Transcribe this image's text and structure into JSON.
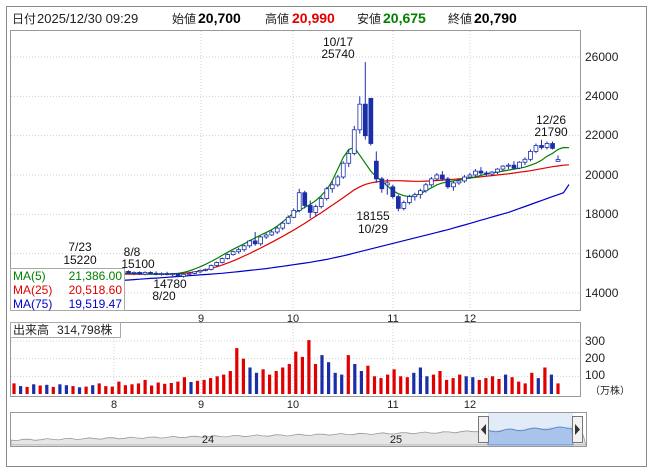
{
  "header": {
    "date_label": "日付",
    "datetime": "2025/12/30 09:29",
    "open_label": "始値",
    "open": "20,700",
    "high_label": "高値",
    "high": "20,990",
    "low_label": "安値",
    "low": "20,675",
    "close_label": "終値",
    "close": "20,790",
    "colors": {
      "high": "#e00000",
      "low": "#008000",
      "normal": "#000000"
    }
  },
  "price_chart": {
    "y_ticks": [
      "26000",
      "24000",
      "22000",
      "20000",
      "18000",
      "16000",
      "14000"
    ],
    "ma_legend": [
      {
        "label": "MA(5)",
        "value": "21,386.00",
        "color": "#008000"
      },
      {
        "label": "MA(25)",
        "value": "20,518.60",
        "color": "#e00000"
      },
      {
        "label": "MA(75)",
        "value": "19,519.47",
        "color": "#0000cc"
      }
    ],
    "annotations": [
      {
        "date": "7/23",
        "value": "15220"
      },
      {
        "date": "8/8",
        "value": "15100"
      },
      {
        "date": "8/20",
        "value": "14780"
      },
      {
        "date": "10/17",
        "value": "25740"
      },
      {
        "date": "10/29",
        "value": "18155"
      },
      {
        "date": "12/26",
        "value": "21790"
      }
    ]
  },
  "volume_chart": {
    "title": "出来高",
    "current": "314,798株",
    "y_ticks": [
      "300",
      "200",
      "100"
    ],
    "unit": "（万株）"
  },
  "x_labels": [
    "8",
    "9",
    "10",
    "11",
    "12"
  ],
  "navigator": {
    "labels": [
      "24",
      "25"
    ]
  },
  "chart_data": {
    "type": "candlestick",
    "title": "",
    "y_range": [
      13000,
      27000
    ],
    "volume_range": [
      0,
      350
    ],
    "colors": {
      "up": "#ffffff",
      "down": "#1a2ea8",
      "ma5": "#008000",
      "ma25": "#e00000",
      "ma75": "#0000cc",
      "vol_up": "#e00000",
      "vol_down": "#1a2ea8"
    },
    "candles": [
      {
        "o": 15050,
        "h": 15220,
        "l": 14950,
        "c": 15150
      },
      {
        "o": 15150,
        "h": 15200,
        "l": 15000,
        "c": 15050
      },
      {
        "o": 15050,
        "h": 15150,
        "l": 14980,
        "c": 15100
      },
      {
        "o": 15100,
        "h": 15150,
        "l": 14950,
        "c": 15000
      },
      {
        "o": 15000,
        "h": 15100,
        "l": 14900,
        "c": 15050
      },
      {
        "o": 15050,
        "h": 15100,
        "l": 14920,
        "c": 14960
      },
      {
        "o": 14960,
        "h": 15100,
        "l": 14900,
        "c": 15050
      },
      {
        "o": 15050,
        "h": 15100,
        "l": 14950,
        "c": 15000
      },
      {
        "o": 15000,
        "h": 15100,
        "l": 14900,
        "c": 14950
      },
      {
        "o": 14950,
        "h": 15050,
        "l": 14880,
        "c": 14990
      },
      {
        "o": 14990,
        "h": 15080,
        "l": 14900,
        "c": 14940
      },
      {
        "o": 14940,
        "h": 15020,
        "l": 14850,
        "c": 14980
      },
      {
        "o": 14980,
        "h": 15000,
        "l": 14800,
        "c": 14850
      },
      {
        "o": 14850,
        "h": 15000,
        "l": 14780,
        "c": 14950
      },
      {
        "o": 14950,
        "h": 15050,
        "l": 14880,
        "c": 15000
      },
      {
        "o": 15000,
        "h": 15100,
        "l": 14950,
        "c": 15080
      },
      {
        "o": 15080,
        "h": 15200,
        "l": 15000,
        "c": 15150
      },
      {
        "o": 15150,
        "h": 15250,
        "l": 15100,
        "c": 15200
      },
      {
        "o": 15200,
        "h": 15450,
        "l": 15150,
        "c": 15400
      },
      {
        "o": 15400,
        "h": 15600,
        "l": 15350,
        "c": 15550
      },
      {
        "o": 15550,
        "h": 15800,
        "l": 15500,
        "c": 15750
      },
      {
        "o": 15750,
        "h": 16000,
        "l": 15700,
        "c": 15950
      },
      {
        "o": 15950,
        "h": 16150,
        "l": 15900,
        "c": 16100
      },
      {
        "o": 16100,
        "h": 16300,
        "l": 16000,
        "c": 16200
      },
      {
        "o": 16200,
        "h": 16450,
        "l": 16100,
        "c": 16400
      },
      {
        "o": 16400,
        "h": 16700,
        "l": 16300,
        "c": 16650
      },
      {
        "o": 16650,
        "h": 17100,
        "l": 16400,
        "c": 16500
      },
      {
        "o": 16500,
        "h": 16900,
        "l": 16400,
        "c": 16850
      },
      {
        "o": 16850,
        "h": 17050,
        "l": 16750,
        "c": 16950
      },
      {
        "o": 16950,
        "h": 17200,
        "l": 16900,
        "c": 17100
      },
      {
        "o": 17100,
        "h": 17400,
        "l": 17000,
        "c": 17300
      },
      {
        "o": 17300,
        "h": 17650,
        "l": 17200,
        "c": 17550
      },
      {
        "o": 17550,
        "h": 17950,
        "l": 17500,
        "c": 17850
      },
      {
        "o": 17850,
        "h": 18300,
        "l": 17800,
        "c": 18200
      },
      {
        "o": 18200,
        "h": 19300,
        "l": 18100,
        "c": 19100
      },
      {
        "o": 19100,
        "h": 19200,
        "l": 18300,
        "c": 18450
      },
      {
        "o": 18450,
        "h": 18700,
        "l": 17800,
        "c": 18100
      },
      {
        "o": 18100,
        "h": 18500,
        "l": 17900,
        "c": 18400
      },
      {
        "o": 18400,
        "h": 18900,
        "l": 18300,
        "c": 18800
      },
      {
        "o": 18800,
        "h": 19400,
        "l": 18700,
        "c": 19300
      },
      {
        "o": 19300,
        "h": 19700,
        "l": 19100,
        "c": 19500
      },
      {
        "o": 19500,
        "h": 20000,
        "l": 19400,
        "c": 19900
      },
      {
        "o": 19900,
        "h": 20700,
        "l": 19800,
        "c": 20600
      },
      {
        "o": 20600,
        "h": 21300,
        "l": 20400,
        "c": 21100
      },
      {
        "o": 21100,
        "h": 22500,
        "l": 21000,
        "c": 22300
      },
      {
        "o": 22300,
        "h": 24000,
        "l": 22100,
        "c": 23600
      },
      {
        "o": 23600,
        "h": 25740,
        "l": 21800,
        "c": 22000
      },
      {
        "o": 23900,
        "h": 23900,
        "l": 21500,
        "c": 21600
      },
      {
        "o": 20700,
        "h": 21200,
        "l": 19600,
        "c": 19800
      },
      {
        "o": 19800,
        "h": 19900,
        "l": 19100,
        "c": 19300
      },
      {
        "o": 19500,
        "h": 19800,
        "l": 19000,
        "c": 19600
      },
      {
        "o": 19400,
        "h": 19500,
        "l": 18800,
        "c": 18900
      },
      {
        "o": 18900,
        "h": 19000,
        "l": 18155,
        "c": 18300
      },
      {
        "o": 18300,
        "h": 18700,
        "l": 18200,
        "c": 18600
      },
      {
        "o": 18600,
        "h": 19000,
        "l": 18500,
        "c": 18900
      },
      {
        "o": 18900,
        "h": 19100,
        "l": 18700,
        "c": 19000
      },
      {
        "o": 19000,
        "h": 19300,
        "l": 18800,
        "c": 19200
      },
      {
        "o": 19200,
        "h": 19600,
        "l": 19100,
        "c": 19500
      },
      {
        "o": 19500,
        "h": 19900,
        "l": 19400,
        "c": 19800
      },
      {
        "o": 19800,
        "h": 20100,
        "l": 19700,
        "c": 20000
      },
      {
        "o": 20000,
        "h": 20200,
        "l": 19700,
        "c": 19800
      },
      {
        "o": 19800,
        "h": 19900,
        "l": 19300,
        "c": 19400
      },
      {
        "o": 19400,
        "h": 19700,
        "l": 19200,
        "c": 19600
      },
      {
        "o": 19600,
        "h": 19800,
        "l": 19500,
        "c": 19700
      },
      {
        "o": 19700,
        "h": 20000,
        "l": 19600,
        "c": 19900
      },
      {
        "o": 19900,
        "h": 20100,
        "l": 19800,
        "c": 20000
      },
      {
        "o": 20000,
        "h": 20300,
        "l": 19900,
        "c": 20200
      },
      {
        "o": 20200,
        "h": 20400,
        "l": 20000,
        "c": 20100
      },
      {
        "o": 20100,
        "h": 20200,
        "l": 19950,
        "c": 20050
      },
      {
        "o": 20050,
        "h": 20200,
        "l": 19950,
        "c": 20150
      },
      {
        "o": 20150,
        "h": 20350,
        "l": 20050,
        "c": 20300
      },
      {
        "o": 20300,
        "h": 20500,
        "l": 20200,
        "c": 20450
      },
      {
        "o": 20450,
        "h": 20600,
        "l": 20300,
        "c": 20500
      },
      {
        "o": 20500,
        "h": 20700,
        "l": 20300,
        "c": 20350
      },
      {
        "o": 20350,
        "h": 20700,
        "l": 20300,
        "c": 20650
      },
      {
        "o": 20650,
        "h": 20900,
        "l": 20500,
        "c": 20800
      },
      {
        "o": 20800,
        "h": 21300,
        "l": 20700,
        "c": 21200
      },
      {
        "o": 21200,
        "h": 21600,
        "l": 21100,
        "c": 21500
      },
      {
        "o": 21500,
        "h": 21790,
        "l": 21300,
        "c": 21400
      },
      {
        "o": 21400,
        "h": 21700,
        "l": 21300,
        "c": 21600
      },
      {
        "o": 21600,
        "h": 21700,
        "l": 21300,
        "c": 21350
      },
      {
        "o": 20700,
        "h": 20990,
        "l": 20675,
        "c": 20790
      }
    ],
    "ma5": [
      14960,
      14990,
      15000,
      15000,
      14990,
      14980,
      14970,
      14960,
      14960,
      14950,
      14950,
      14980,
      15000,
      15050,
      15120,
      15220,
      15330,
      15460,
      15600,
      15750,
      15910,
      16070,
      16220,
      16360,
      16500,
      16660,
      16800,
      16950,
      17080,
      17220,
      17400,
      17620,
      17850,
      18050,
      18200,
      18350,
      18500,
      18700,
      18950,
      19250,
      19700,
      20300,
      20900,
      21300,
      21400,
      21000,
      20600,
      20200,
      19900,
      19700,
      19450,
      19200,
      19050,
      18950,
      18900,
      18950,
      19050,
      19200,
      19350,
      19500,
      19600,
      19650,
      19700,
      19750,
      19800,
      19850,
      19900,
      19980,
      20050,
      20100,
      20150,
      20200,
      20250,
      20300,
      20350,
      20400,
      20500,
      20600,
      20750,
      20950,
      21100,
      21300,
      21400,
      21386
    ],
    "ma25": [
      14950,
      14960,
      14960,
      14960,
      14960,
      14960,
      14960,
      14960,
      14960,
      14960,
      14960,
      14970,
      14980,
      15000,
      15030,
      15070,
      15120,
      15180,
      15250,
      15330,
      15420,
      15520,
      15630,
      15750,
      15880,
      16010,
      16150,
      16290,
      16430,
      16580,
      16730,
      16880,
      17040,
      17200,
      17370,
      17540,
      17720,
      17900,
      18080,
      18270,
      18460,
      18650,
      18850,
      19050,
      19250,
      19400,
      19520,
      19600,
      19650,
      19680,
      19700,
      19710,
      19710,
      19700,
      19690,
      19680,
      19680,
      19690,
      19700,
      19720,
      19740,
      19760,
      19780,
      19800,
      19820,
      19850,
      19880,
      19910,
      19940,
      19970,
      20000,
      20030,
      20060,
      20100,
      20140,
      20180,
      20220,
      20270,
      20320,
      20370,
      20420,
      20460,
      20500,
      20518
    ],
    "ma75": [
      14600,
      14620,
      14640,
      14660,
      14680,
      14700,
      14720,
      14740,
      14760,
      14780,
      14800,
      14820,
      14840,
      14860,
      14880,
      14900,
      14920,
      14940,
      14960,
      14980,
      15000,
      15030,
      15060,
      15090,
      15120,
      15150,
      15180,
      15210,
      15240,
      15280,
      15320,
      15360,
      15400,
      15440,
      15480,
      15520,
      15560,
      15610,
      15660,
      15710,
      15770,
      15830,
      15890,
      15960,
      16030,
      16100,
      16170,
      16240,
      16310,
      16380,
      16450,
      16520,
      16590,
      16660,
      16730,
      16800,
      16870,
      16940,
      17010,
      17080,
      17150,
      17220,
      17300,
      17380,
      17460,
      17540,
      17620,
      17700,
      17780,
      17860,
      17940,
      18020,
      18100,
      18200,
      18300,
      18400,
      18500,
      18600,
      18700,
      18800,
      18900,
      19000,
      19100,
      19519
    ],
    "volume": [
      60,
      45,
      40,
      55,
      48,
      52,
      40,
      55,
      50,
      45,
      38,
      42,
      50,
      60,
      45,
      42,
      70,
      50,
      55,
      60,
      80,
      48,
      65,
      58,
      62,
      70,
      95,
      68,
      75,
      80,
      90,
      100,
      110,
      130,
      260,
      200,
      150,
      120,
      140,
      110,
      130,
      150,
      170,
      240,
      210,
      305,
      170,
      220,
      180,
      120,
      110,
      220,
      170,
      130,
      160,
      100,
      90,
      110,
      140,
      100,
      95,
      120,
      150,
      100,
      110,
      130,
      80,
      90,
      110,
      100,
      95,
      80,
      90,
      100,
      85,
      110,
      95,
      70,
      60,
      120,
      90,
      150,
      110,
      60
    ]
  }
}
